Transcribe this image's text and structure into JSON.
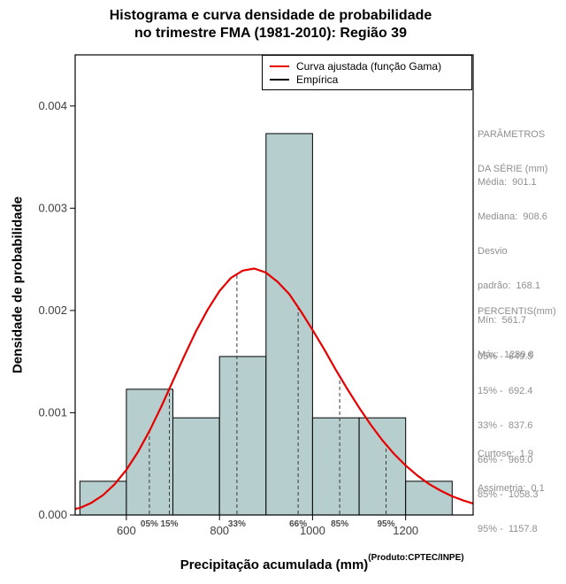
{
  "title": {
    "line1": "Histograma e curva densidade de probabilidade",
    "line2": "no trimestre FMA (1981-2010): Região 39"
  },
  "axes": {
    "ylabel": "Densidade de probabilidade",
    "xlabel": "Precipitação acumulada (mm)",
    "xlabel_sup": "(Produto:CPTEC/INPE)"
  },
  "legend": {
    "gamma": "Curva ajustada (função Gama)",
    "empirical": "Empírica"
  },
  "side_panel": {
    "params_title": [
      "PARÂMETROS",
      "DA SÉRIE (mm)"
    ],
    "stats": [
      "Média:  901.1",
      "Mediana:  908.6",
      "Desvio",
      "padrão:  168.1",
      "Mín:  561.7",
      "Máx:  1289.8"
    ],
    "percentis_title": "PERCENTIS(mm)",
    "percentis": [
      "05% -  649.5",
      "15% -  692.4",
      "33% -  837.6",
      "66% -  969.0",
      "85% -  1058.3",
      "95% -  1157.8"
    ],
    "shape": [
      "Curtose:  1.9",
      "Assimetria:  0.1"
    ]
  },
  "chart_data": {
    "type": "histogram+line",
    "title": "Histograma e curva densidade de probabilidade no trimestre FMA (1981-2010): Região 39",
    "xlabel": "Precipitação acumulada (mm)",
    "ylabel": "Densidade de probabilidade",
    "xlim": [
      490,
      1345
    ],
    "ylim": [
      0,
      0.0045
    ],
    "x_ticks": [
      600,
      800,
      1000,
      1200
    ],
    "y_ticks": [
      0,
      0.001,
      0.002,
      0.003,
      0.004
    ],
    "grid": false,
    "legend_position": "top-right-inside",
    "histogram": {
      "name": "Empírica",
      "bin_edges": [
        500,
        600,
        700,
        800,
        900,
        1000,
        1100,
        1200,
        1300
      ],
      "densities": [
        0.00033,
        0.00123,
        0.00095,
        0.00155,
        0.00373,
        0.00095,
        0.00095,
        0.00033
      ]
    },
    "gamma_fit": {
      "name": "Curva ajustada (função Gama)",
      "mean": 901.1,
      "sd": 168.1,
      "curve_points": [
        [
          490,
          6e-05
        ],
        [
          500,
          6.8e-05
        ],
        [
          525,
          0.000119
        ],
        [
          550,
          0.000195
        ],
        [
          575,
          0.000301
        ],
        [
          600,
          0.000441
        ],
        [
          625,
          0.000618
        ],
        [
          650,
          0.000825
        ],
        [
          675,
          0.00106
        ],
        [
          700,
          0.00131
        ],
        [
          725,
          0.00156
        ],
        [
          750,
          0.0018
        ],
        [
          775,
          0.00201
        ],
        [
          800,
          0.00219
        ],
        [
          825,
          0.00232
        ],
        [
          850,
          0.00239
        ],
        [
          875,
          0.00241
        ],
        [
          900,
          0.00237
        ],
        [
          925,
          0.00228
        ],
        [
          950,
          0.00216
        ],
        [
          975,
          0.00199
        ],
        [
          1000,
          0.00181
        ],
        [
          1025,
          0.00162
        ],
        [
          1050,
          0.00142
        ],
        [
          1075,
          0.00123
        ],
        [
          1100,
          0.00105
        ],
        [
          1125,
          0.000883
        ],
        [
          1150,
          0.00073
        ],
        [
          1175,
          0.000598
        ],
        [
          1200,
          0.000484
        ],
        [
          1225,
          0.000387
        ],
        [
          1250,
          0.000304
        ],
        [
          1275,
          0.000238
        ],
        [
          1300,
          0.000183
        ],
        [
          1325,
          0.00014
        ],
        [
          1345,
          0.000112
        ]
      ]
    },
    "percentiles": [
      {
        "label": "05%",
        "value": 649.5
      },
      {
        "label": "15%",
        "value": 692.4
      },
      {
        "label": "33%",
        "value": 837.6
      },
      {
        "label": "66%",
        "value": 969.0
      },
      {
        "label": "85%",
        "value": 1058.3
      },
      {
        "label": "95%",
        "value": 1157.8
      }
    ],
    "stats": {
      "mean": 901.1,
      "median": 908.6,
      "sd": 168.1,
      "min": 561.7,
      "max": 1289.8,
      "kurtosis": 1.9,
      "skewness": 0.1
    },
    "colors": {
      "bar_fill": "#b6cecd",
      "bar_stroke": "#000000",
      "curve": "#e60000",
      "dashed": "#3a3a3a",
      "text_gray": "#8f8f8f"
    }
  }
}
